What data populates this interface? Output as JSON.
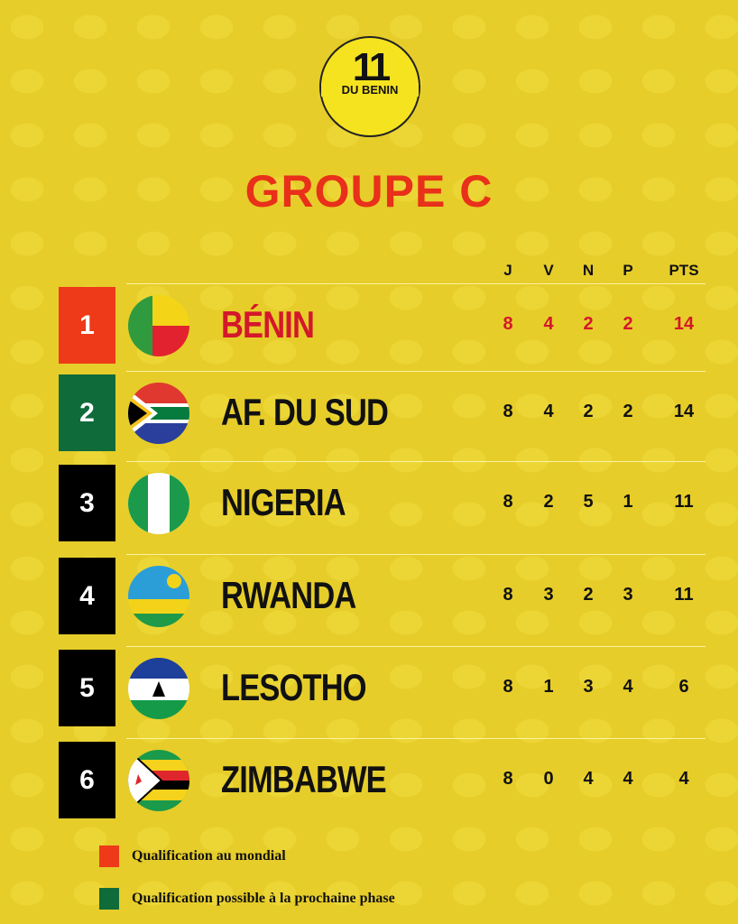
{
  "logo": {
    "number": "11",
    "text": "DU BENIN"
  },
  "title": "GROUPE C",
  "table": {
    "columns": [
      "J",
      "V",
      "N",
      "P",
      "PTS"
    ],
    "rows": [
      {
        "rank": 1,
        "team": "BÉNIN",
        "color": "#ee3a18",
        "stats": [
          8,
          4,
          2,
          2,
          14
        ]
      },
      {
        "rank": 2,
        "team": "AF. DU SUD",
        "color": "#0f6b3a",
        "stats": [
          8,
          4,
          2,
          2,
          14
        ]
      },
      {
        "rank": 3,
        "team": "NIGERIA",
        "color": "#000000",
        "stats": [
          8,
          2,
          5,
          1,
          11
        ]
      },
      {
        "rank": 4,
        "team": "RWANDA",
        "color": "#000000",
        "stats": [
          8,
          3,
          2,
          3,
          11
        ]
      },
      {
        "rank": 5,
        "team": "LESOTHO",
        "color": "#000000",
        "stats": [
          8,
          1,
          3,
          4,
          6
        ]
      },
      {
        "rank": 6,
        "team": "ZIMBABWE",
        "color": "#000000",
        "stats": [
          8,
          0,
          4,
          4,
          4
        ]
      }
    ]
  },
  "legend": [
    {
      "label": "Qualification au mondial",
      "color": "#ee3a18"
    },
    {
      "label": "Qualification possible à la prochaine phase",
      "color": "#0f6b3a"
    }
  ]
}
